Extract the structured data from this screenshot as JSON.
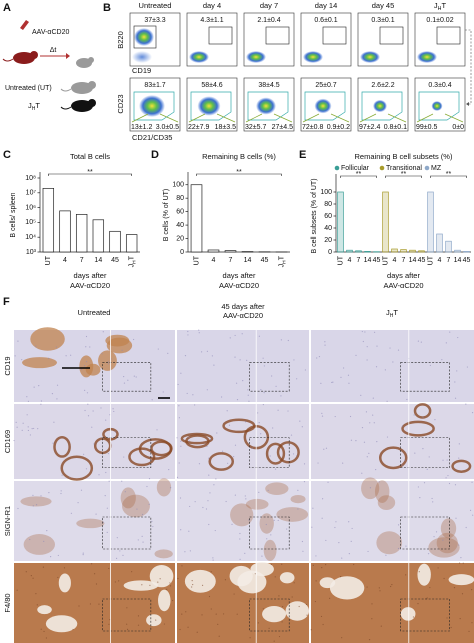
{
  "panel_a": {
    "label": "A",
    "treatment": "AAV-αCD20",
    "delta": "Δt",
    "untreated": "Untreated (UT)",
    "jht": [
      "J",
      "H",
      "T"
    ]
  },
  "panel_b": {
    "label": "B",
    "columns": [
      "Untreated",
      "day 4",
      "day 7",
      "day 14",
      "day 45",
      [
        "J",
        "H",
        "T"
      ]
    ],
    "row1": {
      "y_label": "B220",
      "x_label": "CD19",
      "gates": [
        "37±3.3",
        "4.3±1.1",
        "2.1±0.4",
        "0.6±0.1",
        "0.3±0.1",
        "0.1±0.02"
      ]
    },
    "row2": {
      "y_label": "CD23",
      "x_label": "CD21/CD35",
      "gates_top": [
        "83±1.7",
        "58±4.6",
        "38±4.5",
        "25±0.7",
        "2.6±2.2",
        "0.3±0.4"
      ],
      "gates_bottom": [
        [
          "13±1.2",
          "3.0±0.5"
        ],
        [
          "22±7.9",
          "18±3.5"
        ],
        [
          "32±5.7",
          "27±4.5"
        ],
        [
          "72±0.8",
          "0.9±0.2"
        ],
        [
          "97±2.4",
          "0.8±0.1"
        ],
        [
          "99±0.5",
          "0±0"
        ]
      ]
    }
  },
  "chart_data": [
    {
      "type": "bar",
      "panel": "C",
      "title": "Total B cells",
      "y_label": "B cells/ spleen",
      "x_label": [
        "days after",
        "AAV-αCD20"
      ],
      "categories": [
        "UT",
        "4",
        "7",
        "14",
        "45",
        [
          "J",
          "H",
          "T"
        ]
      ],
      "values": [
        20000000,
        600000,
        350000,
        150000,
        25000,
        15000
      ],
      "color": "#ffffff",
      "log_scale": true,
      "ylim": [
        1000,
        100000000
      ],
      "yticks": [
        {
          "value": 1000,
          "label": "10³"
        },
        {
          "value": 10000,
          "label": "10⁴"
        },
        {
          "value": 100000,
          "label": "10⁵"
        },
        {
          "value": 1000000,
          "label": "10⁶"
        },
        {
          "value": 10000000,
          "label": "10⁷"
        },
        {
          "value": 100000000,
          "label": "10⁸"
        }
      ],
      "significance": "**"
    },
    {
      "type": "bar",
      "panel": "D",
      "title": "Remaining B cells (%)",
      "y_label": "B cells (% of UT)",
      "x_label": [
        "days after",
        "AAV-αCD20"
      ],
      "categories": [
        "UT",
        "4",
        "7",
        "14",
        "45",
        [
          "J",
          "H",
          "T"
        ]
      ],
      "values": [
        100,
        3,
        2,
        0.6,
        0.3,
        0.1
      ],
      "color": "#ffffff",
      "ylim": [
        0,
        110
      ],
      "yticks": [
        0,
        20,
        40,
        60,
        80,
        100
      ],
      "significance": "**"
    },
    {
      "type": "bar",
      "panel": "E",
      "title": "Remaining B cell subsets (%)",
      "y_label": "B cell subsets (% of UT)",
      "x_label": [
        "days after",
        "AAV-αCD20"
      ],
      "categories": [
        "UT",
        "4",
        "7",
        "14",
        "45"
      ],
      "series": [
        {
          "name": "Follicular",
          "color": "#3a9e96",
          "values": [
            100,
            3,
            2,
            1,
            0.5
          ]
        },
        {
          "name": "Transitional",
          "color": "#a89c2c",
          "values": [
            100,
            5,
            4,
            3,
            2
          ]
        },
        {
          "name": "MZ",
          "color": "#8fa9c9",
          "values": [
            100,
            30,
            18,
            3,
            1
          ]
        }
      ],
      "ylim": [
        0,
        120
      ],
      "yticks": [
        0,
        20,
        40,
        60,
        80,
        100
      ],
      "significance": [
        "**",
        "**",
        "**"
      ],
      "legend": "top"
    }
  ],
  "panel_f": {
    "label": "F",
    "untreated": "Untreated",
    "treated": [
      "45 days after",
      "AAV-αCD20"
    ],
    "jht": [
      "J",
      "H",
      "T"
    ],
    "rows": [
      "CD19",
      "CD169",
      "SIGN-R1",
      "F4/80"
    ]
  }
}
